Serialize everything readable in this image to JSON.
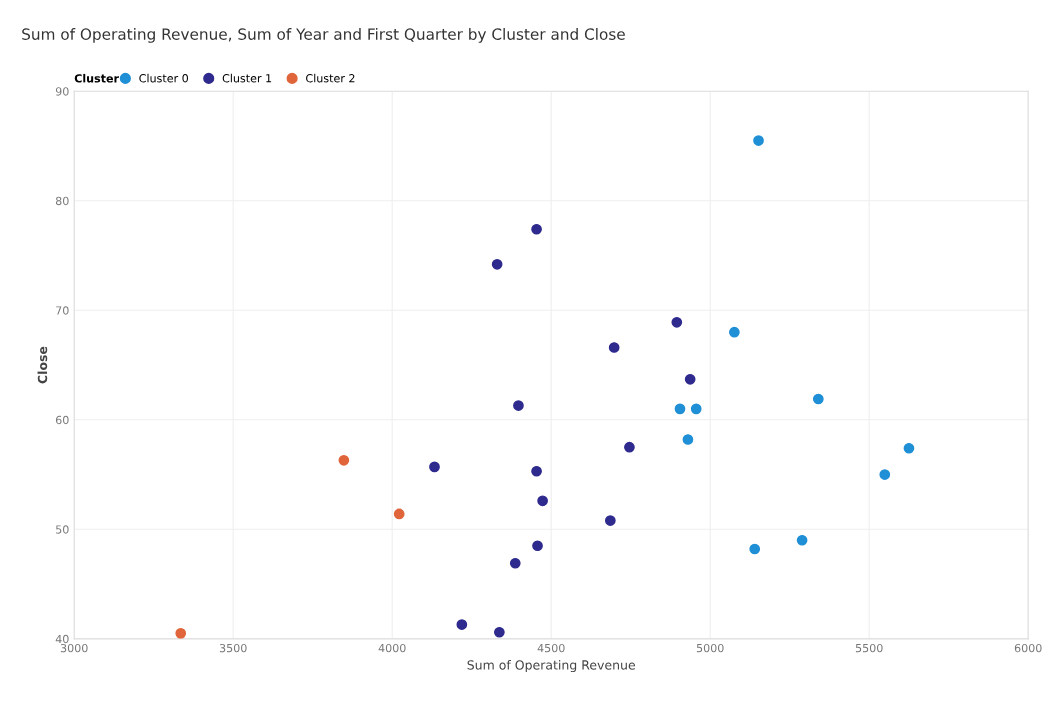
{
  "chart_data": {
    "type": "scatter",
    "title": "Sum of Operating Revenue, Sum of Year and First Quarter by Cluster and Close",
    "xlabel": "Sum of Operating Revenue",
    "ylabel": "Close",
    "legend_title": "Cluster",
    "legend": "top left",
    "grid": true,
    "marker": "circle",
    "xlim": [
      3000,
      6000
    ],
    "xticks": [
      3000,
      3500,
      4000,
      4500,
      5000,
      5500,
      6000
    ],
    "ylim": [
      40,
      90
    ],
    "yticks": [
      40,
      50,
      60,
      70,
      80,
      90
    ],
    "series": [
      {
        "name": "Cluster 0",
        "color": "#1f8fd6",
        "x": [
          5152,
          5076,
          4905,
          4956,
          5340,
          4930,
          5625,
          5549,
          5289,
          5140
        ],
        "values": [
          85.5,
          68.0,
          61.0,
          61.0,
          61.9,
          58.2,
          57.4,
          55.0,
          49.0,
          48.2
        ]
      },
      {
        "name": "Cluster 1",
        "color": "#2e2a8e",
        "x": [
          4895,
          4937,
          4454,
          4330,
          4698,
          4397,
          4746,
          4133,
          4454,
          4473,
          4686,
          4457,
          4387,
          4219,
          4337
        ],
        "values": [
          68.9,
          63.7,
          77.4,
          74.2,
          66.6,
          61.3,
          57.5,
          55.7,
          55.3,
          52.6,
          50.8,
          48.5,
          46.9,
          41.3,
          40.6
        ]
      },
      {
        "name": "Cluster 2",
        "color": "#e0653a",
        "x": [
          3848,
          4022,
          3335
        ],
        "values": [
          56.3,
          51.4,
          40.5
        ]
      }
    ]
  }
}
